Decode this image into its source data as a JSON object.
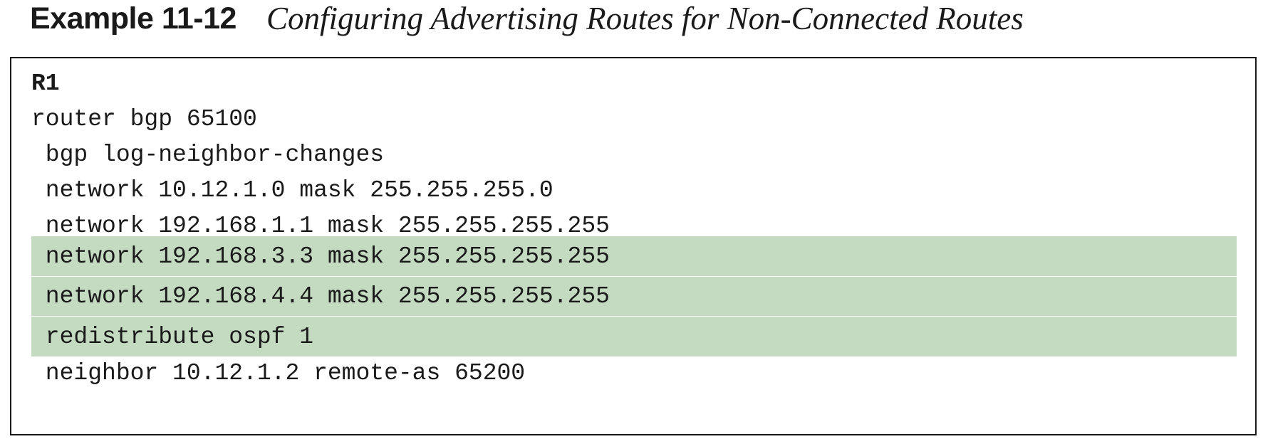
{
  "header": {
    "example_label": "Example 11-12",
    "example_title": "Configuring Advertising Routes for Non-Connected Routes"
  },
  "colors": {
    "highlight": "#c4dbc2",
    "border": "#1a1a1a",
    "text": "#1a1a1a"
  },
  "code": {
    "lines": [
      {
        "text": "R1",
        "bold": true,
        "highlighted": false
      },
      {
        "text": "router bgp 65100",
        "bold": false,
        "highlighted": false
      },
      {
        "text": " bgp log-neighbor-changes",
        "bold": false,
        "highlighted": false
      },
      {
        "text": " network 10.12.1.0 mask 255.255.255.0",
        "bold": false,
        "highlighted": false
      },
      {
        "text": " network 192.168.1.1 mask 255.255.255.255",
        "bold": false,
        "highlighted": false
      },
      {
        "text": " network 192.168.3.3 mask 255.255.255.255",
        "bold": false,
        "highlighted": true
      },
      {
        "text": " network 192.168.4.4 mask 255.255.255.255",
        "bold": false,
        "highlighted": true
      },
      {
        "text": " redistribute ospf 1",
        "bold": false,
        "highlighted": true
      },
      {
        "text": " neighbor 10.12.1.2 remote-as 65200",
        "bold": false,
        "highlighted": false
      }
    ]
  }
}
